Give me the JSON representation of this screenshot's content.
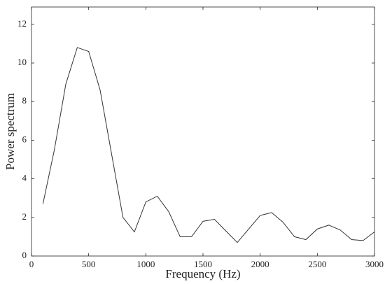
{
  "chart_data": {
    "type": "line",
    "x_label": "Frequency (Hz)",
    "y_label": "Power spectrum",
    "x": [
      100,
      200,
      300,
      400,
      500,
      600,
      700,
      800,
      900,
      1000,
      1100,
      1200,
      1300,
      1400,
      1500,
      1600,
      1700,
      1800,
      1900,
      2000,
      2100,
      2200,
      2300,
      2400,
      2500,
      2600,
      2700,
      2800,
      2900,
      3000
    ],
    "series": [
      {
        "color": "#333333",
        "values": [
          2.7,
          5.5,
          8.9,
          10.8,
          10.6,
          8.6,
          5.3,
          2.0,
          1.25,
          2.8,
          3.1,
          2.3,
          1.0,
          1.0,
          1.8,
          1.9,
          1.3,
          0.7,
          1.4,
          2.1,
          2.25,
          1.75,
          1.0,
          0.85,
          1.4,
          1.6,
          1.35,
          0.85,
          0.8,
          1.25
        ]
      }
    ],
    "xlim": [
      0,
      3000
    ],
    "xticks": [
      0,
      500,
      1000,
      1500,
      2000,
      2500,
      3000
    ],
    "ylim": [
      0,
      12.9
    ],
    "yticks": [
      0,
      2,
      4,
      6,
      8,
      10,
      12
    ],
    "grid": false
  }
}
